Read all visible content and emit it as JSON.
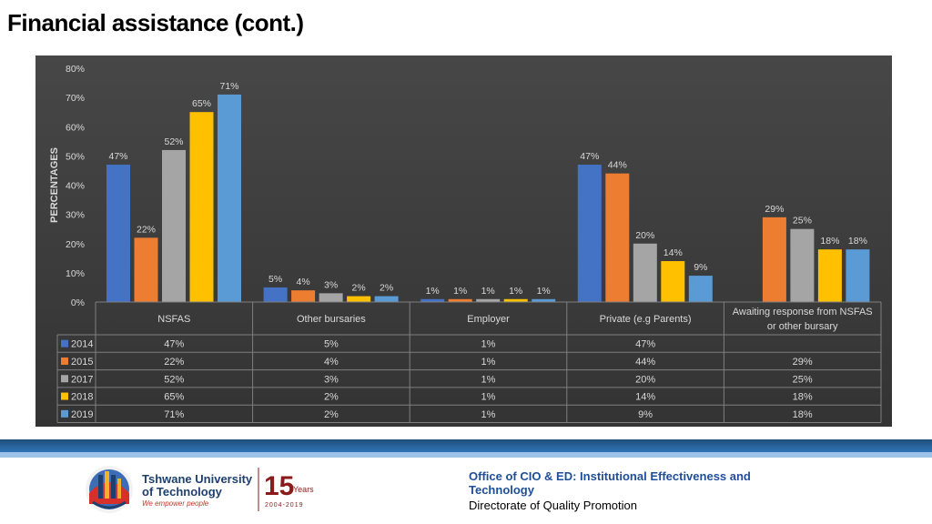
{
  "title": "Financial assistance (cont.)",
  "chart_data": {
    "type": "bar",
    "ylabel": "PERCENTAGES",
    "ylim": [
      0,
      80
    ],
    "yticks": [
      "0%",
      "10%",
      "20%",
      "30%",
      "40%",
      "50%",
      "60%",
      "70%",
      "80%"
    ],
    "grid": false,
    "legend": "table-below",
    "categories": [
      "NSFAS",
      "Other bursaries",
      "Employer",
      "Private (e.g Parents)",
      "Awaiting response from NSFAS or other bursary"
    ],
    "category_lines": [
      [
        "NSFAS"
      ],
      [
        "Other bursaries"
      ],
      [
        "Employer"
      ],
      [
        "Private (e.g Parents)"
      ],
      [
        "Awaiting response from NSFAS",
        "or other bursary"
      ]
    ],
    "series": [
      {
        "name": "2014",
        "color": "#4472c4",
        "values": [
          47,
          5,
          1,
          47,
          null
        ],
        "labels": [
          "47%",
          "5%",
          "1%",
          "47%",
          ""
        ]
      },
      {
        "name": "2015",
        "color": "#ed7d31",
        "values": [
          22,
          4,
          1,
          44,
          29
        ],
        "labels": [
          "22%",
          "4%",
          "1%",
          "44%",
          "29%"
        ]
      },
      {
        "name": "2017",
        "color": "#a5a5a5",
        "values": [
          52,
          3,
          1,
          20,
          25
        ],
        "labels": [
          "52%",
          "3%",
          "1%",
          "20%",
          "25%"
        ]
      },
      {
        "name": "2018",
        "color": "#ffc000",
        "values": [
          65,
          2,
          1,
          14,
          18
        ],
        "labels": [
          "65%",
          "2%",
          "1%",
          "14%",
          "18%"
        ]
      },
      {
        "name": "2019",
        "color": "#5b9bd5",
        "values": [
          71,
          2,
          1,
          9,
          18
        ],
        "labels": [
          "71%",
          "2%",
          "1%",
          "9%",
          "18%"
        ]
      }
    ]
  },
  "footer": {
    "org_name": "Tshwane University of Technology",
    "tagline": "We empower people",
    "anniversary_number": "15",
    "anniversary_word": "Years",
    "anniversary_years": "2004-2019",
    "office_line1": "Office of CIO & ED: Institutional  Effectiveness and Technology",
    "office_line2": "Directorate of Quality Promotion"
  }
}
